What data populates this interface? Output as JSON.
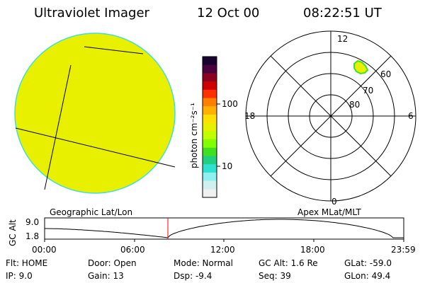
{
  "header": {
    "instrument": "Ultraviolet Imager",
    "date": "12 Oct 00",
    "time": "08:22:51 UT"
  },
  "colorbar": {
    "unit_label": "photon cm⁻²s⁻¹",
    "ticks": [
      "100",
      "10"
    ],
    "colors": [
      "#1a0030",
      "#4b0040",
      "#8b0020",
      "#cc0000",
      "#ff3000",
      "#ff8000",
      "#ffb000",
      "#ffe000",
      "#e8f000",
      "#c0ff00",
      "#80ff00",
      "#40e020",
      "#20d080",
      "#30e0d0",
      "#90f0f0",
      "#d0f0f0",
      "#f0f0f0"
    ]
  },
  "left_panel": {
    "label": "Geographic Lat/Lon",
    "disk_color": "#e8f000",
    "edge_color": "#40e0d0"
  },
  "right_panel": {
    "label": "Apex MLat/MLT",
    "mlt_labels": {
      "top": "12",
      "left": "18",
      "right": "6",
      "bottom": "0"
    },
    "lat_labels": [
      "60",
      "70",
      "80"
    ],
    "aurora_color": "#e8f000"
  },
  "altitude_plot": {
    "ylabel": "GC Alt",
    "y_ticks": [
      "9.0",
      "1.8"
    ],
    "x_ticks": [
      "00:00",
      "06:00",
      "12:00",
      "18:00",
      "23:59"
    ],
    "marker_color": "#ff0000"
  },
  "info": {
    "filter": "Flt: HOME",
    "ip": "IP:  9.0",
    "door": "Door: Open",
    "gain": "Gain: 13",
    "mode": "Mode: Normal",
    "dsp": "Dsp:    -9.4",
    "gc_alt": "GC Alt: 1.6 Re",
    "seq": "Seq: 39",
    "glat": "GLat:  -59.0",
    "glon": "GLon:  49.4"
  }
}
